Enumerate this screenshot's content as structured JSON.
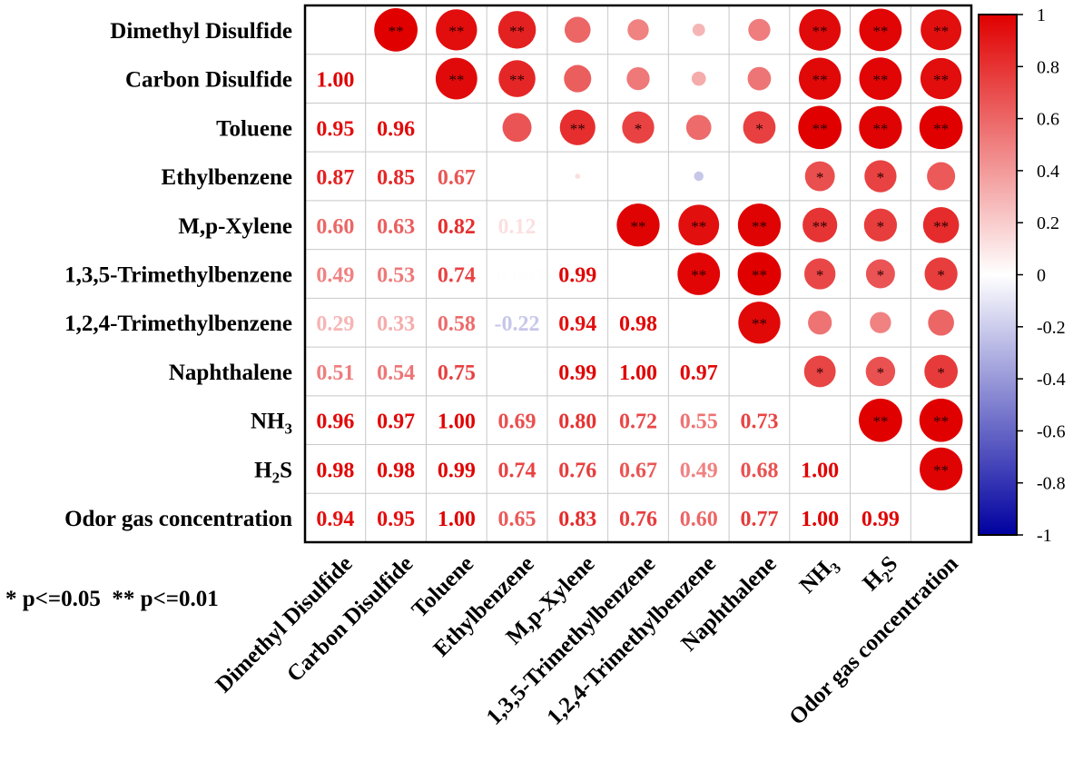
{
  "chart_data": {
    "type": "heatmap",
    "title": "",
    "row_labels": [
      {
        "text": "Dimethyl Disulfide"
      },
      {
        "text": "Carbon Disulfide"
      },
      {
        "text": "Toluene"
      },
      {
        "text": "Ethylbenzene"
      },
      {
        "text": "M,p-Xylene"
      },
      {
        "text": "1,3,5-Trimethylbenzene"
      },
      {
        "text": "1,2,4-Trimethylbenzene"
      },
      {
        "text": "Naphthalene"
      },
      {
        "text": "NH",
        "sub": "3"
      },
      {
        "text": "H",
        "sub": "2",
        "tail": "S"
      },
      {
        "text": "Odor gas concentration"
      }
    ],
    "lower_labels": [
      [
        "",
        "",
        "",
        "",
        "",
        "",
        "",
        "",
        "",
        "",
        ""
      ],
      [
        "1.00",
        "",
        "",
        "",
        "",
        "",
        "",
        "",
        "",
        "",
        ""
      ],
      [
        "0.95",
        "0.96",
        "",
        "",
        "",
        "",
        "",
        "",
        "",
        "",
        ""
      ],
      [
        "0.87",
        "0.85",
        "0.67",
        "",
        "",
        "",
        "",
        "",
        "",
        "",
        ""
      ],
      [
        "0.60",
        "0.63",
        "0.82",
        "0.12",
        "",
        "",
        "",
        "",
        "",
        "",
        ""
      ],
      [
        "0.49",
        "0.53",
        "0.74",
        "-0.003",
        "0.99",
        "",
        "",
        "",
        "",
        "",
        ""
      ],
      [
        "0.29",
        "0.33",
        "0.58",
        "-0.22",
        "0.94",
        "0.98",
        "",
        "",
        "",
        "",
        ""
      ],
      [
        "0.51",
        "0.54",
        "0.75",
        "",
        "0.99",
        "1.00",
        "0.97",
        "",
        "",
        "",
        ""
      ],
      [
        "0.96",
        "0.97",
        "1.00",
        "0.69",
        "0.80",
        "0.72",
        "0.55",
        "0.73",
        "",
        "",
        ""
      ],
      [
        "0.98",
        "0.98",
        "0.99",
        "0.74",
        "0.76",
        "0.67",
        "0.49",
        "0.68",
        "1.00",
        "",
        ""
      ],
      [
        "0.94",
        "0.95",
        "1.00",
        "0.65",
        "0.83",
        "0.76",
        "0.60",
        "0.77",
        "1.00",
        "0.99",
        ""
      ]
    ],
    "upper_values": [
      [
        null,
        1.0,
        0.95,
        0.87,
        0.6,
        0.49,
        0.29,
        0.51,
        0.96,
        0.98,
        0.94
      ],
      [
        null,
        null,
        0.96,
        0.85,
        0.63,
        0.53,
        0.33,
        0.54,
        0.97,
        0.98,
        0.95
      ],
      [
        null,
        null,
        null,
        0.67,
        0.82,
        0.74,
        0.58,
        0.75,
        1.0,
        0.99,
        1.0
      ],
      [
        null,
        null,
        null,
        null,
        0.12,
        -0.003,
        -0.22,
        0.0,
        0.69,
        0.74,
        0.65
      ],
      [
        null,
        null,
        null,
        null,
        null,
        0.99,
        0.94,
        0.99,
        0.8,
        0.76,
        0.83
      ],
      [
        null,
        null,
        null,
        null,
        null,
        null,
        0.98,
        1.0,
        0.72,
        0.67,
        0.76
      ],
      [
        null,
        null,
        null,
        null,
        null,
        null,
        null,
        0.97,
        0.55,
        0.49,
        0.6
      ],
      [
        null,
        null,
        null,
        null,
        null,
        null,
        null,
        null,
        0.73,
        0.68,
        0.77
      ],
      [
        null,
        null,
        null,
        null,
        null,
        null,
        null,
        null,
        null,
        1.0,
        1.0
      ],
      [
        null,
        null,
        null,
        null,
        null,
        null,
        null,
        null,
        null,
        null,
        0.99
      ],
      [
        null,
        null,
        null,
        null,
        null,
        null,
        null,
        null,
        null,
        null,
        null
      ]
    ],
    "significance": [
      [
        "",
        "**",
        "**",
        "**",
        "",
        "",
        "",
        "",
        "**",
        "**",
        "**"
      ],
      [
        "",
        "",
        "**",
        "**",
        "",
        "",
        "",
        "",
        "**",
        "**",
        "**"
      ],
      [
        "",
        "",
        "",
        "",
        "**",
        "*",
        "",
        "*",
        "**",
        "**",
        "**"
      ],
      [
        "",
        "",
        "",
        "",
        "",
        "",
        "",
        "",
        "*",
        "*",
        ""
      ],
      [
        "",
        "",
        "",
        "",
        "",
        "**",
        "**",
        "**",
        "**",
        "*",
        "**"
      ],
      [
        "",
        "",
        "",
        "",
        "",
        "",
        "**",
        "**",
        "*",
        "*",
        "*"
      ],
      [
        "",
        "",
        "",
        "",
        "",
        "",
        "",
        "**",
        "",
        "",
        ""
      ],
      [
        "",
        "",
        "",
        "",
        "",
        "",
        "",
        "",
        "*",
        "*",
        "*"
      ],
      [
        "",
        "",
        "",
        "",
        "",
        "",
        "",
        "",
        "",
        "**",
        "**"
      ],
      [
        "",
        "",
        "",
        "",
        "",
        "",
        "",
        "",
        "",
        "",
        "**"
      ],
      [
        "",
        "",
        "",
        "",
        "",
        "",
        "",
        "",
        "",
        "",
        ""
      ]
    ],
    "colorbar": {
      "range": [
        -1,
        1
      ],
      "ticks": [
        "1",
        "0.8",
        "0.6",
        "0.4",
        "0.2",
        "0",
        "-0.2",
        "-0.4",
        "-0.6",
        "-0.8",
        "-1"
      ],
      "colors": {
        "negative": "#0000a0",
        "zero": "#ffffff",
        "positive": "#e00000"
      }
    },
    "footnote": "* p<=0.05  ** p<=0.01"
  }
}
